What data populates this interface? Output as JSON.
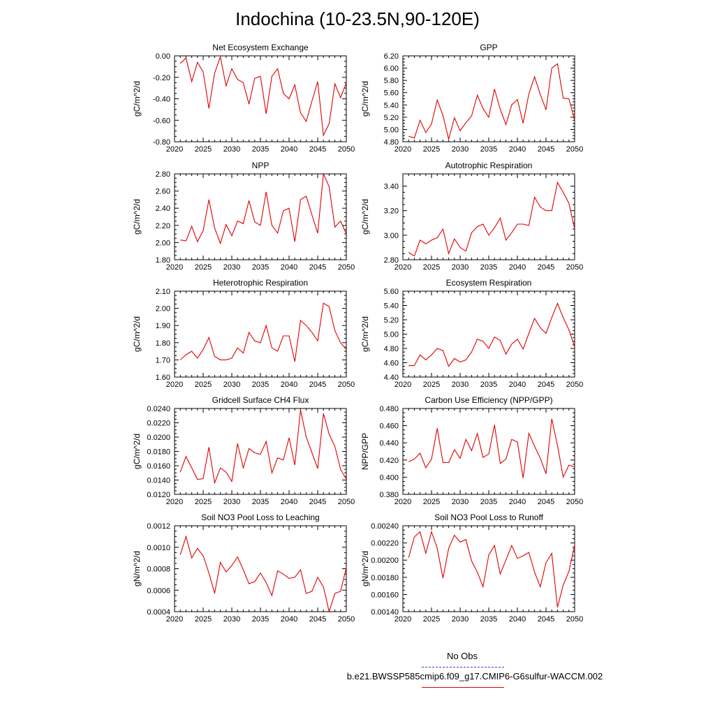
{
  "figure": {
    "title": "Indochina (10-23.5N,90-120E)",
    "line_color": "#e00000",
    "obs_color": "#3a3ad8"
  },
  "legend": {
    "obs_label": "No Obs",
    "model_label": "b.e21.BWSSP585cmip6.f09_g17.CMIP6-G6sulfur-WACCM.002"
  },
  "chart_data": [
    {
      "type": "line",
      "title": "Net Ecosystem Exchange",
      "ylabel": "gC/m^2/d",
      "xlim": [
        2020,
        2050
      ],
      "ylim": [
        -0.8,
        0.0
      ],
      "xticks": [
        "2020",
        "2025",
        "2030",
        "2035",
        "2040",
        "2045",
        "2050"
      ],
      "yticks": [
        "-0.80",
        "-0.60",
        "-0.40",
        "-0.20",
        "0.00"
      ],
      "x": [
        2021,
        2022,
        2023,
        2024,
        2025,
        2026,
        2027,
        2028,
        2029,
        2030,
        2031,
        2032,
        2033,
        2034,
        2035,
        2036,
        2037,
        2038,
        2039,
        2040,
        2041,
        2042,
        2043,
        2044,
        2045,
        2046,
        2047,
        2048,
        2049,
        2050
      ],
      "values": [
        -0.07,
        -0.02,
        -0.24,
        -0.06,
        -0.15,
        -0.49,
        -0.16,
        -0.01,
        -0.28,
        -0.12,
        -0.22,
        -0.25,
        -0.45,
        -0.21,
        -0.19,
        -0.54,
        -0.19,
        -0.12,
        -0.35,
        -0.4,
        -0.27,
        -0.53,
        -0.61,
        -0.42,
        -0.24,
        -0.74,
        -0.63,
        -0.26,
        -0.39,
        -0.25
      ]
    },
    {
      "type": "line",
      "title": "GPP",
      "ylabel": "gC/m^2/d",
      "xlim": [
        2020,
        2050
      ],
      "ylim": [
        4.8,
        6.2
      ],
      "xticks": [
        "2020",
        "2025",
        "2030",
        "2035",
        "2040",
        "2045",
        "2050"
      ],
      "yticks": [
        "4.80",
        "5.00",
        "5.20",
        "5.40",
        "5.60",
        "5.80",
        "6.00",
        "6.20"
      ],
      "x": [
        2021,
        2022,
        2023,
        2024,
        2025,
        2026,
        2027,
        2028,
        2029,
        2030,
        2031,
        2032,
        2033,
        2034,
        2035,
        2036,
        2037,
        2038,
        2039,
        2040,
        2041,
        2042,
        2043,
        2044,
        2045,
        2046,
        2047,
        2048,
        2049,
        2050
      ],
      "values": [
        4.89,
        4.86,
        5.15,
        4.95,
        5.09,
        5.48,
        5.23,
        4.84,
        5.19,
        4.98,
        5.11,
        5.22,
        5.56,
        5.34,
        5.2,
        5.66,
        5.33,
        5.08,
        5.4,
        5.49,
        5.1,
        5.58,
        5.86,
        5.57,
        5.32,
        6.0,
        6.07,
        5.51,
        5.5,
        5.15
      ]
    },
    {
      "type": "line",
      "title": "NPP",
      "ylabel": "gC/m^2/d",
      "xlim": [
        2020,
        2050
      ],
      "ylim": [
        1.8,
        2.8
      ],
      "xticks": [
        "2020",
        "2025",
        "2030",
        "2035",
        "2040",
        "2045",
        "2050"
      ],
      "yticks": [
        "1.80",
        "2.00",
        "2.20",
        "2.40",
        "2.60",
        "2.80"
      ],
      "x": [
        2021,
        2022,
        2023,
        2024,
        2025,
        2026,
        2027,
        2028,
        2029,
        2030,
        2031,
        2032,
        2033,
        2034,
        2035,
        2036,
        2037,
        2038,
        2039,
        2040,
        2041,
        2042,
        2043,
        2044,
        2045,
        2046,
        2047,
        2048,
        2049,
        2050
      ],
      "values": [
        2.03,
        2.02,
        2.19,
        2.01,
        2.14,
        2.5,
        2.17,
        1.99,
        2.21,
        2.08,
        2.25,
        2.22,
        2.49,
        2.24,
        2.2,
        2.59,
        2.2,
        2.11,
        2.37,
        2.4,
        2.01,
        2.5,
        2.54,
        2.32,
        2.11,
        2.8,
        2.65,
        2.18,
        2.25,
        2.1
      ]
    },
    {
      "type": "line",
      "title": "Autotrophic Respiration",
      "ylabel": "gC/m^2/d",
      "xlim": [
        2020,
        2050
      ],
      "ylim": [
        2.8,
        3.5
      ],
      "xticks": [
        "2020",
        "2025",
        "2030",
        "2035",
        "2040",
        "2045",
        "2050"
      ],
      "yticks": [
        "2.80",
        "3.00",
        "3.20",
        "3.40"
      ],
      "x": [
        2021,
        2022,
        2023,
        2024,
        2025,
        2026,
        2027,
        2028,
        2029,
        2030,
        2031,
        2032,
        2033,
        2034,
        2035,
        2036,
        2037,
        2038,
        2039,
        2040,
        2041,
        2042,
        2043,
        2044,
        2045,
        2046,
        2047,
        2048,
        2049,
        2050
      ],
      "values": [
        2.86,
        2.83,
        2.96,
        2.93,
        2.96,
        2.98,
        3.05,
        2.85,
        2.97,
        2.9,
        2.87,
        3.02,
        3.07,
        3.09,
        3.0,
        3.06,
        3.14,
        2.96,
        3.02,
        3.09,
        3.09,
        3.08,
        3.31,
        3.23,
        3.2,
        3.2,
        3.43,
        3.35,
        3.26,
        3.05
      ]
    },
    {
      "type": "line",
      "title": "Heterotrophic Respiration",
      "ylabel": "gC/m^2/d",
      "xlim": [
        2020,
        2050
      ],
      "ylim": [
        1.6,
        2.1
      ],
      "xticks": [
        "2020",
        "2025",
        "2030",
        "2035",
        "2040",
        "2045",
        "2050"
      ],
      "yticks": [
        "1.60",
        "1.70",
        "1.80",
        "1.90",
        "2.00",
        "2.10"
      ],
      "x": [
        2021,
        2022,
        2023,
        2024,
        2025,
        2026,
        2027,
        2028,
        2029,
        2030,
        2031,
        2032,
        2033,
        2034,
        2035,
        2036,
        2037,
        2038,
        2039,
        2040,
        2041,
        2042,
        2043,
        2044,
        2045,
        2046,
        2047,
        2048,
        2049,
        2050
      ],
      "values": [
        1.7,
        1.73,
        1.75,
        1.71,
        1.76,
        1.83,
        1.72,
        1.7,
        1.7,
        1.71,
        1.77,
        1.74,
        1.86,
        1.81,
        1.8,
        1.9,
        1.77,
        1.75,
        1.84,
        1.84,
        1.69,
        1.93,
        1.9,
        1.86,
        1.81,
        2.03,
        2.01,
        1.87,
        1.8,
        1.76
      ]
    },
    {
      "type": "line",
      "title": "Ecosystem Respiration",
      "ylabel": "gC/m^2/d",
      "xlim": [
        2020,
        2050
      ],
      "ylim": [
        4.4,
        5.6
      ],
      "xticks": [
        "2020",
        "2025",
        "2030",
        "2035",
        "2040",
        "2045",
        "2050"
      ],
      "yticks": [
        "4.40",
        "4.60",
        "4.80",
        "5.00",
        "5.20",
        "5.40",
        "5.60"
      ],
      "x": [
        2021,
        2022,
        2023,
        2024,
        2025,
        2026,
        2027,
        2028,
        2029,
        2030,
        2031,
        2032,
        2033,
        2034,
        2035,
        2036,
        2037,
        2038,
        2039,
        2040,
        2041,
        2042,
        2043,
        2044,
        2045,
        2046,
        2047,
        2048,
        2049,
        2050
      ],
      "values": [
        4.56,
        4.56,
        4.71,
        4.64,
        4.71,
        4.8,
        4.77,
        4.55,
        4.66,
        4.61,
        4.64,
        4.75,
        4.93,
        4.9,
        4.8,
        4.96,
        4.91,
        4.72,
        4.86,
        4.93,
        4.79,
        5.01,
        5.22,
        5.09,
        5.01,
        5.23,
        5.43,
        5.23,
        5.06,
        4.82
      ]
    },
    {
      "type": "line",
      "title": "Gridcell Surface CH4 Flux",
      "ylabel": "gC/m^2/d",
      "xlim": [
        2020,
        2050
      ],
      "ylim": [
        0.012,
        0.024
      ],
      "xticks": [
        "2020",
        "2025",
        "2030",
        "2035",
        "2040",
        "2045",
        "2050"
      ],
      "yticks": [
        "0.0120",
        "0.0140",
        "0.0160",
        "0.0180",
        "0.0200",
        "0.0220",
        "0.0240"
      ],
      "x": [
        2021,
        2022,
        2023,
        2024,
        2025,
        2026,
        2027,
        2028,
        2029,
        2030,
        2031,
        2032,
        2033,
        2034,
        2035,
        2036,
        2037,
        2038,
        2039,
        2040,
        2041,
        2042,
        2043,
        2044,
        2045,
        2046,
        2047,
        2048,
        2049,
        2050
      ],
      "values": [
        0.0151,
        0.0173,
        0.0157,
        0.0141,
        0.0142,
        0.0186,
        0.0136,
        0.0157,
        0.0151,
        0.0138,
        0.0191,
        0.0157,
        0.0184,
        0.0178,
        0.0176,
        0.0194,
        0.015,
        0.0171,
        0.0168,
        0.0199,
        0.0161,
        0.0238,
        0.02,
        0.0178,
        0.0156,
        0.0233,
        0.0204,
        0.0187,
        0.0155,
        0.0141
      ]
    },
    {
      "type": "line",
      "title": "Carbon Use Efficiency (NPP/GPP)",
      "ylabel": "NPP/GPP",
      "xlim": [
        2020,
        2050
      ],
      "ylim": [
        0.38,
        0.48
      ],
      "xticks": [
        "2020",
        "2025",
        "2030",
        "2035",
        "2040",
        "2045",
        "2050"
      ],
      "yticks": [
        "0.380",
        "0.400",
        "0.420",
        "0.440",
        "0.460",
        "0.480"
      ],
      "x": [
        2021,
        2022,
        2023,
        2024,
        2025,
        2026,
        2027,
        2028,
        2029,
        2030,
        2031,
        2032,
        2033,
        2034,
        2035,
        2036,
        2037,
        2038,
        2039,
        2040,
        2041,
        2042,
        2043,
        2044,
        2045,
        2046,
        2047,
        2048,
        2049,
        2050
      ],
      "values": [
        0.418,
        0.421,
        0.428,
        0.411,
        0.421,
        0.457,
        0.417,
        0.417,
        0.432,
        0.422,
        0.444,
        0.431,
        0.451,
        0.423,
        0.427,
        0.461,
        0.416,
        0.421,
        0.444,
        0.441,
        0.399,
        0.451,
        0.436,
        0.422,
        0.404,
        0.468,
        0.437,
        0.4,
        0.414,
        0.412
      ]
    },
    {
      "type": "line",
      "title": "Soil NO3 Pool Loss to Leaching",
      "ylabel": "gN/m^2/d",
      "xlim": [
        2020,
        2050
      ],
      "ylim": [
        0.0004,
        0.0012
      ],
      "xticks": [
        "2020",
        "2025",
        "2030",
        "2035",
        "2040",
        "2045",
        "2050"
      ],
      "yticks": [
        "0.0004",
        "0.0006",
        "0.0008",
        "0.0010",
        "0.0012"
      ],
      "x": [
        2021,
        2022,
        2023,
        2024,
        2025,
        2026,
        2027,
        2028,
        2029,
        2030,
        2031,
        2032,
        2033,
        2034,
        2035,
        2036,
        2037,
        2038,
        2039,
        2040,
        2041,
        2042,
        2043,
        2044,
        2045,
        2046,
        2047,
        2048,
        2049,
        2050
      ],
      "values": [
        0.00093,
        0.0011,
        0.0009,
        0.00099,
        0.00092,
        0.00076,
        0.00057,
        0.00086,
        0.00077,
        0.00083,
        0.00091,
        0.00079,
        0.00066,
        0.00068,
        0.00076,
        0.00067,
        0.00055,
        0.00078,
        0.00075,
        0.00071,
        0.00072,
        0.00079,
        0.00057,
        0.00059,
        0.00072,
        0.00063,
        0.0004,
        0.00057,
        0.00059,
        0.00081
      ]
    },
    {
      "type": "line",
      "title": "Soil NO3 Pool Loss to Runoff",
      "ylabel": "gN/m^2/d",
      "xlim": [
        2020,
        2050
      ],
      "ylim": [
        0.0014,
        0.0024
      ],
      "xticks": [
        "2020",
        "2025",
        "2030",
        "2035",
        "2040",
        "2045",
        "2050"
      ],
      "yticks": [
        "0.00140",
        "0.00160",
        "0.00180",
        "0.00200",
        "0.00220",
        "0.00240"
      ],
      "x": [
        2021,
        2022,
        2023,
        2024,
        2025,
        2026,
        2027,
        2028,
        2029,
        2030,
        2031,
        2032,
        2033,
        2034,
        2035,
        2036,
        2037,
        2038,
        2039,
        2040,
        2041,
        2042,
        2043,
        2044,
        2045,
        2046,
        2047,
        2048,
        2049,
        2050
      ],
      "values": [
        0.00203,
        0.00227,
        0.00233,
        0.00208,
        0.00233,
        0.00214,
        0.00179,
        0.00214,
        0.00229,
        0.00221,
        0.00224,
        0.00199,
        0.00186,
        0.00169,
        0.00206,
        0.00217,
        0.00184,
        0.002,
        0.00217,
        0.00202,
        0.00205,
        0.00209,
        0.00186,
        0.00169,
        0.00197,
        0.00208,
        0.00145,
        0.00171,
        0.00187,
        0.00218
      ]
    }
  ]
}
